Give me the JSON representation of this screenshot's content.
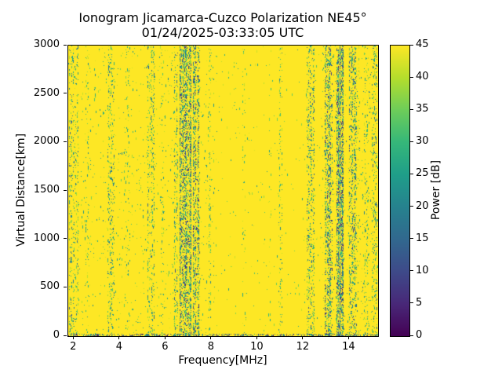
{
  "chart_data": {
    "type": "heatmap",
    "title": "Ionogram Jicamarca-Cuzco Polarization NE45°",
    "subtitle": "01/24/2025-03:33:05 UTC",
    "xlabel": "Frequency[MHz]",
    "ylabel": "Virtual Distance[km]",
    "x_range": [
      1.75,
      15.25
    ],
    "y_range": [
      0,
      3000
    ],
    "x_ticks": [
      2,
      4,
      6,
      8,
      10,
      12,
      14
    ],
    "y_ticks": [
      0,
      500,
      1000,
      1500,
      2000,
      2500,
      3000
    ],
    "grid": false,
    "colorbar": {
      "label": "Power [dB]",
      "range": [
        0,
        45
      ],
      "ticks": [
        0,
        5,
        10,
        15,
        20,
        25,
        30,
        35,
        40,
        45
      ],
      "colormap": "viridis"
    },
    "background_value_db": 45,
    "base_speckle_density": 0.004,
    "bottom_edge": {
      "rows": 3,
      "density": 0.35,
      "db_range": [
        0,
        30
      ]
    },
    "noise_bands": [
      {
        "center_mhz": 4.95,
        "width_mhz": 6.5,
        "density": 0.012,
        "db_range": [
          20,
          43
        ]
      },
      {
        "center_mhz": 14.0,
        "width_mhz": 2.6,
        "density": 0.02,
        "db_range": [
          18,
          43
        ]
      },
      {
        "center_mhz": 1.9,
        "width_mhz": 0.2,
        "density": 0.09,
        "db_range": [
          12,
          42
        ]
      },
      {
        "center_mhz": 2.1,
        "width_mhz": 0.2,
        "density": 0.08,
        "db_range": [
          15,
          42
        ]
      },
      {
        "center_mhz": 2.55,
        "width_mhz": 0.15,
        "density": 0.05,
        "db_range": [
          20,
          42
        ]
      },
      {
        "center_mhz": 3.6,
        "width_mhz": 0.3,
        "density": 0.09,
        "db_range": [
          14,
          42
        ]
      },
      {
        "center_mhz": 4.35,
        "width_mhz": 0.2,
        "density": 0.05,
        "db_range": [
          20,
          42
        ]
      },
      {
        "center_mhz": 5.35,
        "width_mhz": 0.3,
        "density": 0.09,
        "db_range": [
          14,
          42
        ]
      },
      {
        "center_mhz": 5.85,
        "width_mhz": 0.15,
        "density": 0.05,
        "db_range": [
          20,
          42
        ]
      },
      {
        "center_mhz": 6.45,
        "width_mhz": 0.2,
        "density": 0.12,
        "db_range": [
          10,
          40
        ]
      },
      {
        "center_mhz": 6.85,
        "width_mhz": 0.5,
        "density": 0.3,
        "db_range": [
          5,
          40
        ]
      },
      {
        "center_mhz": 7.35,
        "width_mhz": 0.3,
        "density": 0.22,
        "db_range": [
          5,
          40
        ]
      },
      {
        "center_mhz": 7.9,
        "width_mhz": 0.15,
        "density": 0.06,
        "db_range": [
          20,
          42
        ]
      },
      {
        "center_mhz": 9.4,
        "width_mhz": 0.12,
        "density": 0.03,
        "db_range": [
          25,
          42
        ]
      },
      {
        "center_mhz": 10.55,
        "width_mhz": 0.12,
        "density": 0.03,
        "db_range": [
          25,
          42
        ]
      },
      {
        "center_mhz": 11.0,
        "width_mhz": 0.15,
        "density": 0.07,
        "db_range": [
          18,
          42
        ]
      },
      {
        "center_mhz": 12.3,
        "width_mhz": 0.35,
        "density": 0.12,
        "db_range": [
          10,
          42
        ]
      },
      {
        "center_mhz": 13.1,
        "width_mhz": 0.35,
        "density": 0.2,
        "db_range": [
          5,
          40
        ]
      },
      {
        "center_mhz": 13.6,
        "width_mhz": 0.3,
        "density": 0.45,
        "db_range": [
          3,
          38
        ]
      },
      {
        "center_mhz": 14.15,
        "width_mhz": 0.35,
        "density": 0.15,
        "db_range": [
          8,
          40
        ]
      },
      {
        "center_mhz": 14.75,
        "width_mhz": 0.2,
        "density": 0.07,
        "db_range": [
          18,
          42
        ]
      },
      {
        "center_mhz": 15.1,
        "width_mhz": 0.25,
        "density": 0.08,
        "db_range": [
          14,
          42
        ]
      }
    ]
  }
}
